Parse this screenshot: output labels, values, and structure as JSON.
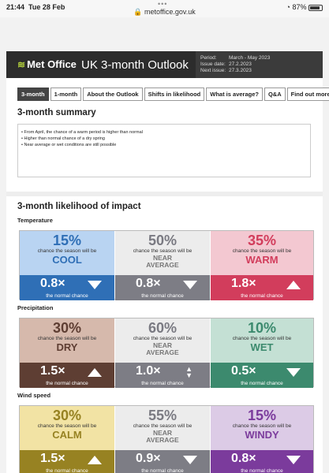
{
  "status": {
    "time": "21:44",
    "date": "Tue 28 Feb",
    "url": "metoffice.gov.uk",
    "battery": "87%",
    "battery_level": 0.87
  },
  "header": {
    "logo": "Met Office",
    "title": "UK 3-month Outlook",
    "meta": [
      {
        "k": "Period:",
        "v": "March - May 2023"
      },
      {
        "k": "Issue date:",
        "v": "27.2.2023"
      },
      {
        "k": "Next issue:",
        "v": "27.3.2023"
      }
    ]
  },
  "tabs": [
    "3-month",
    "1-month",
    "About the Outlook",
    "Shifts in likelihood",
    "What is average?",
    "Q&A",
    "Find out more"
  ],
  "summary": {
    "title": "3-month summary",
    "items": [
      "From April, the chance of a warm period is higher than normal",
      "Higher than normal chance of a dry spring",
      "Near average or wet conditions are still possible"
    ]
  },
  "impact": {
    "title": "3-month likelihood of impact",
    "lead": "chance the season will be",
    "norm": "the normal chance",
    "groups": [
      {
        "label": "Temperature",
        "cells": [
          {
            "pct": "15%",
            "cat": "COOL",
            "mult": "0.8×",
            "top": "#b9d4f2",
            "bottom": "#2f6fb6",
            "fg": "#2f6fb6",
            "arrow": "down"
          },
          {
            "pct": "50%",
            "cat": "NEAR AVERAGE",
            "mult": "0.8×",
            "top": "#ececec",
            "bottom": "#7d7d85",
            "fg": "#7a7a82",
            "arrow": "down"
          },
          {
            "pct": "35%",
            "cat": "WARM",
            "mult": "1.8×",
            "top": "#f3c8d1",
            "bottom": "#d23d5c",
            "fg": "#d23d5c",
            "arrow": "up"
          }
        ]
      },
      {
        "label": "Precipitation",
        "cells": [
          {
            "pct": "30%",
            "cat": "DRY",
            "mult": "1.5×",
            "top": "#d6b9ac",
            "bottom": "#5e3e33",
            "fg": "#5e3e33",
            "arrow": "up"
          },
          {
            "pct": "60%",
            "cat": "NEAR AVERAGE",
            "mult": "1.0×",
            "top": "#ececec",
            "bottom": "#7d7d85",
            "fg": "#7a7a82",
            "arrow": "both"
          },
          {
            "pct": "10%",
            "cat": "WET",
            "mult": "0.5×",
            "top": "#c4e0d4",
            "bottom": "#3c8a6e",
            "fg": "#3c8a6e",
            "arrow": "down"
          }
        ]
      },
      {
        "label": "Wind speed",
        "cells": [
          {
            "pct": "30%",
            "cat": "CALM",
            "mult": "1.5×",
            "top": "#f2e3a4",
            "bottom": "#978222",
            "fg": "#978222",
            "arrow": "up"
          },
          {
            "pct": "55%",
            "cat": "NEAR AVERAGE",
            "mult": "0.9×",
            "top": "#ececec",
            "bottom": "#7d7d85",
            "fg": "#7a7a82",
            "arrow": "down"
          },
          {
            "pct": "15%",
            "cat": "WINDY",
            "mult": "0.8×",
            "top": "#dccbe6",
            "bottom": "#7b3b9c",
            "fg": "#7b3b9c",
            "arrow": "down"
          }
        ]
      }
    ]
  }
}
